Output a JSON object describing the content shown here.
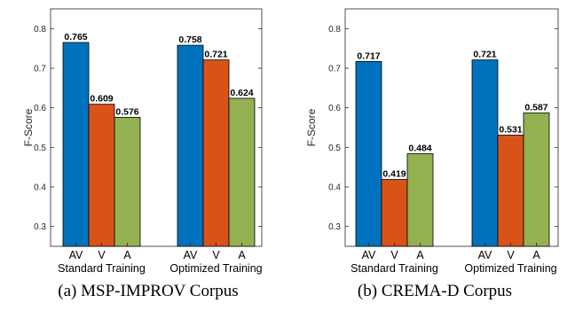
{
  "colors": {
    "AV": "#0072BD",
    "V": "#D95319",
    "A": "#93B150"
  },
  "chart_data": [
    {
      "type": "bar",
      "caption": "(a) MSP-IMPROV Corpus",
      "ylabel": "F-Score",
      "ylim": [
        0.25,
        0.85
      ],
      "yticks": [
        "0.3",
        "0.4",
        "0.5",
        "0.6",
        "0.7",
        "0.8"
      ],
      "groups": [
        "Standard Training",
        "Optimized Training"
      ],
      "categories": [
        "AV",
        "V",
        "A"
      ],
      "series": [
        {
          "group": "Standard Training",
          "values": [
            0.765,
            0.609,
            0.576
          ],
          "labels": [
            "0.765",
            "0.609",
            "0.576"
          ]
        },
        {
          "group": "Optimized Training",
          "values": [
            0.758,
            0.721,
            0.624
          ],
          "labels": [
            "0.758",
            "0.721",
            "0.624"
          ]
        }
      ],
      "grid": false
    },
    {
      "type": "bar",
      "caption": "(b) CREMA-D Corpus",
      "ylabel": "F-Score",
      "ylim": [
        0.25,
        0.85
      ],
      "yticks": [
        "0.3",
        "0.4",
        "0.5",
        "0.6",
        "0.7",
        "0.8"
      ],
      "groups": [
        "Standard Training",
        "Optimized Training"
      ],
      "categories": [
        "AV",
        "V",
        "A"
      ],
      "series": [
        {
          "group": "Standard Training",
          "values": [
            0.717,
            0.419,
            0.484
          ],
          "labels": [
            "0.717",
            "0.419",
            "0.484"
          ]
        },
        {
          "group": "Optimized Training",
          "values": [
            0.721,
            0.531,
            0.587
          ],
          "labels": [
            "0.721",
            "0.531",
            "0.587"
          ]
        }
      ],
      "grid": false
    }
  ]
}
